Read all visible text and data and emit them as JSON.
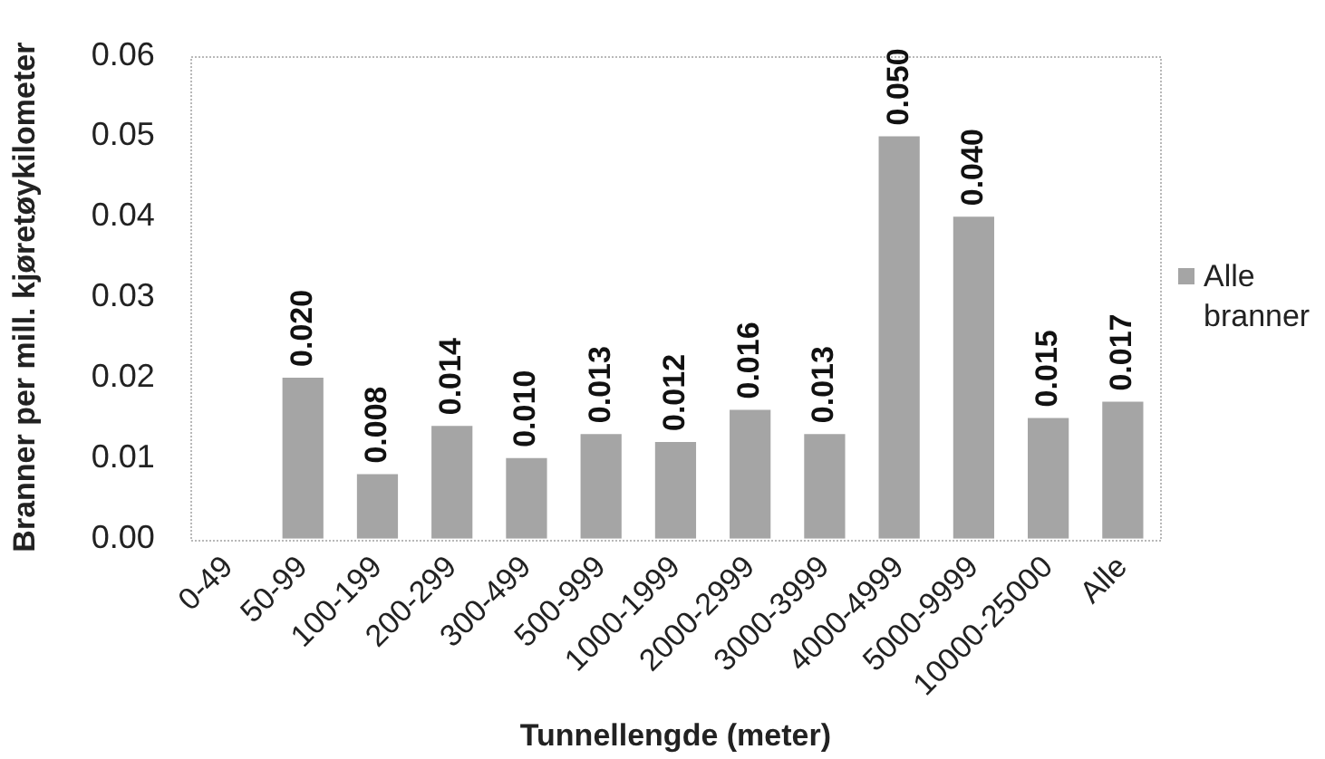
{
  "chart_data": {
    "type": "bar",
    "categories": [
      "0-49",
      "50-99",
      "100-199",
      "200-299",
      "300-499",
      "500-999",
      "1000-1999",
      "2000-2999",
      "3000-3999",
      "4000-4999",
      "5000-9999",
      "10000-25000",
      "Alle"
    ],
    "series": [
      {
        "name": "Alle branner",
        "color": "#a5a5a5",
        "values": [
          null,
          0.02,
          0.008,
          0.014,
          0.01,
          0.013,
          0.012,
          0.016,
          0.013,
          0.05,
          0.04,
          0.015,
          0.017
        ],
        "value_labels": [
          null,
          "0.020",
          "0.008",
          "0.014",
          "0.010",
          "0.013",
          "0.012",
          "0.016",
          "0.013",
          "0.050",
          "0.040",
          "0.015",
          "0.017"
        ]
      }
    ],
    "xlabel": "Tunnellengde (meter)",
    "ylabel": "Branner per mill. kjøretøykilometer",
    "ylim": [
      0,
      0.06
    ],
    "yticks": [
      {
        "value": 0,
        "label": "0.00"
      },
      {
        "value": 0.01,
        "label": "0.01"
      },
      {
        "value": 0.02,
        "label": "0.02"
      },
      {
        "value": 0.03,
        "label": "0.03"
      },
      {
        "value": 0.04,
        "label": "0.04"
      },
      {
        "value": 0.05,
        "label": "0.05"
      },
      {
        "value": 0.06,
        "label": "0.06"
      }
    ],
    "grid": false,
    "legend": "right"
  }
}
